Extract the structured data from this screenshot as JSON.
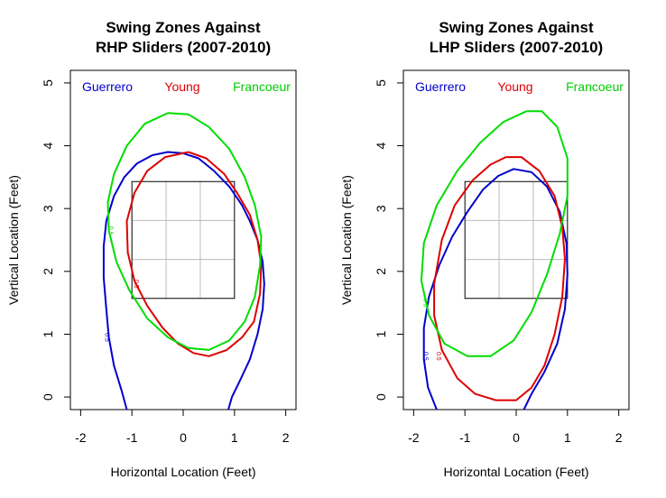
{
  "chart_data": [
    {
      "type": "contour",
      "title_line1": "Swing Zones Against",
      "title_line2": "RHP Sliders (2007-2010)",
      "xlabel": "Horizontal Location (Feet)",
      "ylabel": "Vertical Location (Feet)",
      "xlim": [
        -2.2,
        2.2
      ],
      "ylim": [
        -0.2,
        5.2
      ],
      "xticks": [
        -2,
        -1,
        0,
        1,
        2
      ],
      "yticks": [
        0,
        1,
        2,
        3,
        4,
        5
      ],
      "strike_zone": {
        "x": [
          -1,
          1
        ],
        "y": [
          1.57,
          3.43
        ]
      },
      "contour_level": "0.5",
      "legend": [
        "Guerrero",
        "Young",
        "Francoeur"
      ],
      "series": [
        {
          "name": "Guerrero",
          "color": "#0000cc",
          "points": [
            [
              -1.1,
              -0.2
            ],
            [
              -1.2,
              0.1
            ],
            [
              -1.35,
              0.5
            ],
            [
              -1.45,
              0.95
            ],
            [
              -1.5,
              1.4
            ],
            [
              -1.55,
              1.9
            ],
            [
              -1.55,
              2.4
            ],
            [
              -1.5,
              2.8
            ],
            [
              -1.35,
              3.2
            ],
            [
              -1.15,
              3.5
            ],
            [
              -0.9,
              3.72
            ],
            [
              -0.6,
              3.85
            ],
            [
              -0.3,
              3.9
            ],
            [
              0.0,
              3.88
            ],
            [
              0.3,
              3.8
            ],
            [
              0.6,
              3.6
            ],
            [
              0.9,
              3.35
            ],
            [
              1.15,
              3.05
            ],
            [
              1.3,
              2.8
            ],
            [
              1.45,
              2.5
            ],
            [
              1.55,
              2.15
            ],
            [
              1.58,
              1.8
            ],
            [
              1.55,
              1.4
            ],
            [
              1.45,
              1.0
            ],
            [
              1.3,
              0.6
            ],
            [
              1.1,
              0.25
            ],
            [
              0.95,
              0.0
            ],
            [
              0.88,
              -0.2
            ]
          ],
          "label_at": [
            -1.52,
            0.95
          ]
        },
        {
          "name": "Young",
          "color": "#dd0000",
          "points": [
            [
              0.1,
              3.9
            ],
            [
              0.45,
              3.8
            ],
            [
              0.8,
              3.55
            ],
            [
              1.05,
              3.25
            ],
            [
              1.3,
              2.9
            ],
            [
              1.45,
              2.5
            ],
            [
              1.52,
              2.1
            ],
            [
              1.5,
              1.65
            ],
            [
              1.38,
              1.2
            ],
            [
              1.15,
              0.95
            ],
            [
              0.85,
              0.75
            ],
            [
              0.5,
              0.65
            ],
            [
              0.2,
              0.7
            ],
            [
              -0.1,
              0.85
            ],
            [
              -0.4,
              1.1
            ],
            [
              -0.7,
              1.45
            ],
            [
              -0.95,
              1.85
            ],
            [
              -1.08,
              2.3
            ],
            [
              -1.1,
              2.8
            ],
            [
              -0.95,
              3.25
            ],
            [
              -0.7,
              3.6
            ],
            [
              -0.35,
              3.82
            ],
            [
              0.1,
              3.9
            ]
          ],
          "label_at": [
            -0.95,
            1.8
          ]
        },
        {
          "name": "Francoeur",
          "color": "#00dd00",
          "points": [
            [
              -0.3,
              4.52
            ],
            [
              0.1,
              4.5
            ],
            [
              0.5,
              4.3
            ],
            [
              0.9,
              3.95
            ],
            [
              1.2,
              3.5
            ],
            [
              1.4,
              3.05
            ],
            [
              1.52,
              2.55
            ],
            [
              1.5,
              2.1
            ],
            [
              1.4,
              1.6
            ],
            [
              1.2,
              1.2
            ],
            [
              0.9,
              0.9
            ],
            [
              0.5,
              0.75
            ],
            [
              0.1,
              0.78
            ],
            [
              -0.3,
              0.95
            ],
            [
              -0.7,
              1.25
            ],
            [
              -1.05,
              1.7
            ],
            [
              -1.3,
              2.15
            ],
            [
              -1.45,
              2.65
            ],
            [
              -1.47,
              3.1
            ],
            [
              -1.35,
              3.55
            ],
            [
              -1.1,
              4.0
            ],
            [
              -0.75,
              4.35
            ],
            [
              -0.3,
              4.52
            ]
          ],
          "label_at": [
            -1.45,
            2.65
          ]
        }
      ]
    },
    {
      "type": "contour",
      "title_line1": "Swing Zones Against",
      "title_line2": "LHP Sliders (2007-2010)",
      "xlabel": "Horizontal Location (Feet)",
      "ylabel": "Vertical Location (Feet)",
      "xlim": [
        -2.2,
        2.2
      ],
      "ylim": [
        -0.2,
        5.2
      ],
      "xticks": [
        -2,
        -1,
        0,
        1,
        2
      ],
      "yticks": [
        0,
        1,
        2,
        3,
        4,
        5
      ],
      "strike_zone": {
        "x": [
          -1,
          1
        ],
        "y": [
          1.57,
          3.43
        ]
      },
      "contour_level": "0.5",
      "legend": [
        "Guerrero",
        "Young",
        "Francoeur"
      ],
      "series": [
        {
          "name": "Guerrero",
          "color": "#0000cc",
          "points": [
            [
              -1.55,
              -0.2
            ],
            [
              -1.72,
              0.15
            ],
            [
              -1.8,
              0.6
            ],
            [
              -1.8,
              1.1
            ],
            [
              -1.7,
              1.6
            ],
            [
              -1.5,
              2.1
            ],
            [
              -1.25,
              2.55
            ],
            [
              -0.95,
              2.95
            ],
            [
              -0.65,
              3.3
            ],
            [
              -0.35,
              3.52
            ],
            [
              -0.05,
              3.63
            ],
            [
              0.3,
              3.58
            ],
            [
              0.6,
              3.35
            ],
            [
              0.85,
              2.95
            ],
            [
              0.98,
              2.45
            ],
            [
              1.0,
              1.95
            ],
            [
              0.95,
              1.4
            ],
            [
              0.8,
              0.85
            ],
            [
              0.55,
              0.4
            ],
            [
              0.3,
              0.05
            ],
            [
              0.15,
              -0.2
            ]
          ],
          "label_at": [
            -1.8,
            0.65
          ]
        },
        {
          "name": "Young",
          "color": "#dd0000",
          "points": [
            [
              -0.2,
              3.82
            ],
            [
              0.1,
              3.82
            ],
            [
              0.45,
              3.6
            ],
            [
              0.75,
              3.2
            ],
            [
              0.9,
              2.7
            ],
            [
              0.95,
              2.2
            ],
            [
              0.9,
              1.6
            ],
            [
              0.75,
              1.0
            ],
            [
              0.55,
              0.5
            ],
            [
              0.3,
              0.15
            ],
            [
              0.0,
              -0.05
            ],
            [
              -0.4,
              -0.05
            ],
            [
              -0.8,
              0.05
            ],
            [
              -1.15,
              0.3
            ],
            [
              -1.45,
              0.75
            ],
            [
              -1.6,
              1.3
            ],
            [
              -1.6,
              1.8
            ],
            [
              -1.45,
              2.5
            ],
            [
              -1.2,
              3.05
            ],
            [
              -0.85,
              3.45
            ],
            [
              -0.5,
              3.7
            ],
            [
              -0.2,
              3.82
            ]
          ],
          "label_at": [
            -1.55,
            0.65
          ]
        },
        {
          "name": "Francoeur",
          "color": "#00dd00",
          "points": [
            [
              0.2,
              4.55
            ],
            [
              0.5,
              4.55
            ],
            [
              0.8,
              4.3
            ],
            [
              1.0,
              3.8
            ],
            [
              1.0,
              3.2
            ],
            [
              0.85,
              2.6
            ],
            [
              0.6,
              1.95
            ],
            [
              0.3,
              1.35
            ],
            [
              -0.05,
              0.9
            ],
            [
              -0.5,
              0.65
            ],
            [
              -0.95,
              0.65
            ],
            [
              -1.4,
              0.85
            ],
            [
              -1.7,
              1.3
            ],
            [
              -1.85,
              1.85
            ],
            [
              -1.8,
              2.45
            ],
            [
              -1.55,
              3.05
            ],
            [
              -1.15,
              3.6
            ],
            [
              -0.7,
              4.05
            ],
            [
              -0.25,
              4.38
            ],
            [
              0.2,
              4.55
            ]
          ],
          "label_at": [
            -1.8,
            1.5
          ]
        }
      ]
    }
  ]
}
